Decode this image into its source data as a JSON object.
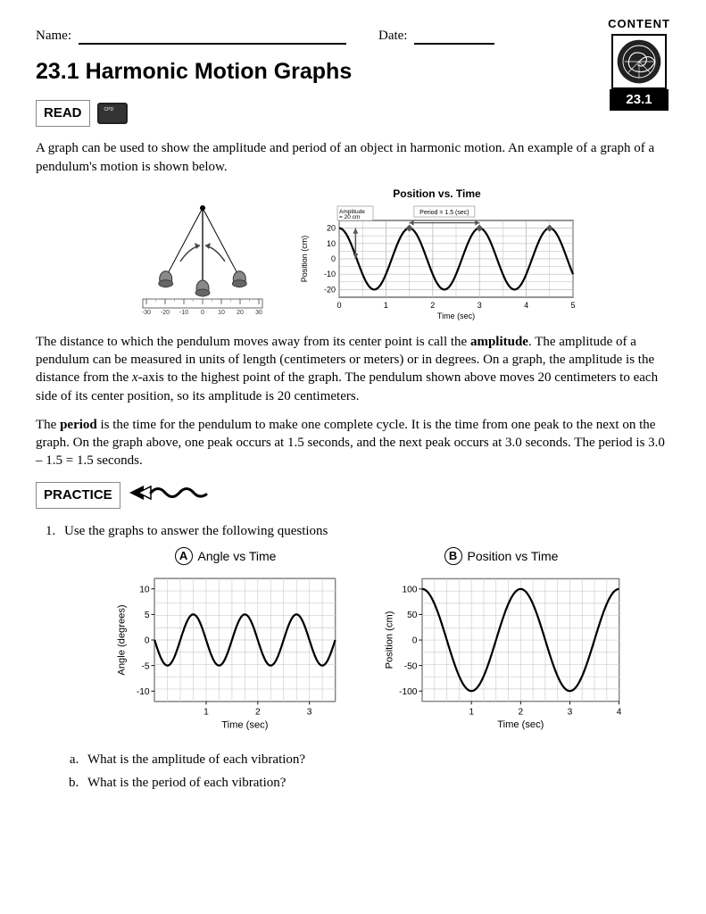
{
  "header": {
    "name_label": "Name:",
    "date_label": "Date:"
  },
  "badge": {
    "label": "CONTENT",
    "number": "23.1"
  },
  "title": "23.1 Harmonic Motion Graphs",
  "sections": {
    "read": "READ",
    "practice": "PRACTICE"
  },
  "paragraphs": {
    "intro": "A graph can be used to show the amplitude and period of an object in harmonic motion. An example of a graph of a pendulum's motion is shown below.",
    "amplitude_pre": "The distance to which the pendulum moves away from its center point is call the ",
    "amplitude_bold": "amplitude",
    "amplitude_post1": ". The amplitude of a pendulum can be measured in units of length (centimeters or meters) or in degrees. On a graph, the amplitude is the distance from the ",
    "amplitude_italic": "x",
    "amplitude_post2": "-axis to the highest point of the graph. The pendulum shown above moves 20 centimeters to each side of its center position, so its amplitude is 20 centimeters.",
    "period_pre": "The ",
    "period_bold": "period",
    "period_post": " is the time for the pendulum to make one complete cycle. It is the time from one peak to the next on the graph. On the graph above, one peak occurs at 1.5 seconds, and the next peak occurs at 3.0 seconds. The period is 3.0 – 1.5 = 1.5 seconds."
  },
  "pendulum": {
    "ruler_ticks": [
      "-30",
      "-20",
      "-10",
      "0",
      "10",
      "20",
      "30"
    ]
  },
  "example_chart": {
    "type": "line",
    "title": "Position vs. Time",
    "ylabel": "Position (cm)",
    "xlabel": "Time (sec)",
    "amplitude_label": "Amplitude",
    "amplitude_value": "= 20 cm",
    "period_label": "Period = 1.5 (sec)",
    "yticks": [
      "20",
      "10",
      "0",
      "-10",
      "-20"
    ],
    "xticks": [
      "0",
      "1",
      "2",
      "3",
      "4",
      "5"
    ],
    "ylim": [
      -25,
      25
    ],
    "xlim": [
      0,
      5
    ],
    "amplitude": 20,
    "period": 1.5,
    "phase_peak": 1.5,
    "line_color": "#000000",
    "grid_color": "#bbbbbb",
    "background": "#ffffff"
  },
  "question1": {
    "text": "Use the graphs to answer the following questions",
    "a": "What is the amplitude of each vibration?",
    "b": "What is the period of each vibration?"
  },
  "chartA": {
    "letter": "A",
    "type": "line",
    "title": "Angle vs Time",
    "ylabel": "Angle (degrees)",
    "xlabel": "Time (sec)",
    "yticks": [
      "10",
      "5",
      "0",
      "-5",
      "-10"
    ],
    "xticks": [
      "1",
      "2",
      "3"
    ],
    "ylim": [
      -12,
      12
    ],
    "xlim": [
      0,
      3.5
    ],
    "amplitude": 5,
    "period": 1.0,
    "phase_start_trough": 0.25,
    "line_color": "#000000",
    "grid_color": "#cccccc",
    "background": "#ffffff",
    "grid_cols": 14,
    "grid_rows": 10
  },
  "chartB": {
    "letter": "B",
    "type": "line",
    "title": "Position vs Time",
    "ylabel": "Position (cm)",
    "xlabel": "Time (sec)",
    "yticks": [
      "100",
      "50",
      "0",
      "-50",
      "-100"
    ],
    "xticks": [
      "1",
      "2",
      "3",
      "4"
    ],
    "ylim": [
      -120,
      120
    ],
    "xlim": [
      0,
      4
    ],
    "amplitude": 100,
    "period": 2.0,
    "phase_start_peak": 0,
    "line_color": "#000000",
    "grid_color": "#cccccc",
    "background": "#ffffff",
    "grid_cols": 16,
    "grid_rows": 10
  }
}
